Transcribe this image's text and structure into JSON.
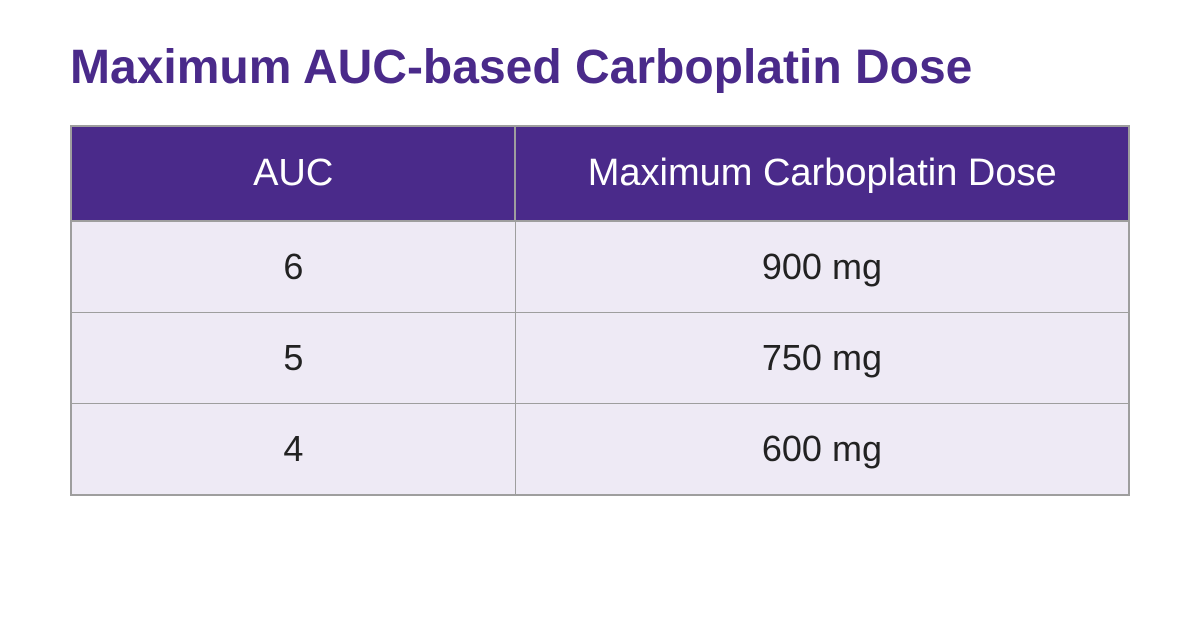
{
  "title": "Maximum AUC-based Carboplatin Dose",
  "title_color": "#4a2a8a",
  "table": {
    "type": "table",
    "columns": [
      "AUC",
      "Maximum Carboplatin Dose"
    ],
    "rows": [
      [
        "6",
        "900 mg"
      ],
      [
        "5",
        "750 mg"
      ],
      [
        "4",
        "600 mg"
      ]
    ],
    "header_bg_color": "#4a2a8a",
    "header_text_color": "#ffffff",
    "row_bg_color": "#eeeaf5",
    "row_text_color": "#222222",
    "border_color": "#9e9e9e",
    "header_fontsize": 38,
    "cell_fontsize": 36,
    "col_widths": [
      "42%",
      "58%"
    ]
  }
}
